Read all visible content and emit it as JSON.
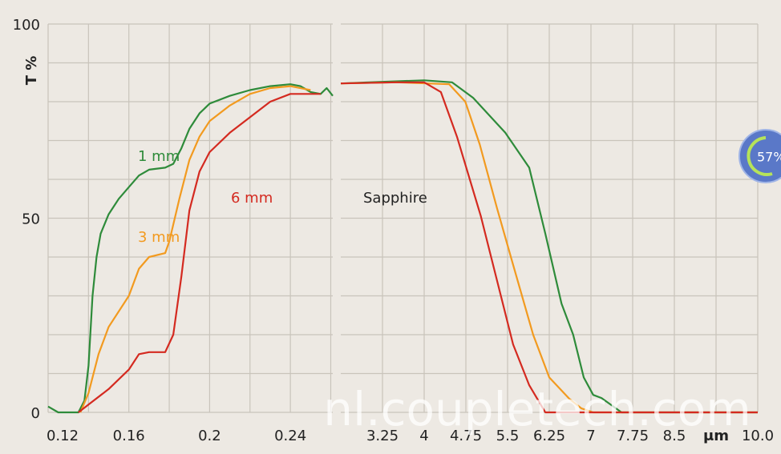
{
  "chart_data": [
    {
      "type": "line",
      "ylabel": "T %",
      "xlim": [
        0.12,
        0.261
      ],
      "xticks": [
        0.12,
        0.16,
        0.2,
        0.24
      ],
      "xgrid": [
        0.14,
        0.18,
        0.22,
        0.26
      ],
      "ylim": [
        0,
        100
      ],
      "yticks": [
        0,
        50,
        100
      ],
      "ygrid": [
        10,
        20,
        30,
        40,
        60,
        70,
        80,
        90
      ],
      "series": [
        {
          "name": "1 mm",
          "color": "#2e8b3a",
          "x": [
            0.12,
            0.125,
            0.135,
            0.138,
            0.14,
            0.142,
            0.144,
            0.146,
            0.15,
            0.155,
            0.16,
            0.165,
            0.17,
            0.178,
            0.182,
            0.186,
            0.19,
            0.195,
            0.2,
            0.21,
            0.22,
            0.23,
            0.24,
            0.245,
            0.25,
            0.255,
            0.258,
            0.261
          ],
          "values": [
            1.5,
            0,
            0,
            3,
            12,
            30,
            40,
            46,
            51,
            55,
            58,
            61,
            62.5,
            63,
            64,
            68,
            73,
            77,
            79.5,
            81.5,
            83,
            84,
            84.5,
            84,
            82.5,
            82,
            83.5,
            81.5
          ]
        },
        {
          "name": "3 mm",
          "color": "#f29a1f",
          "x": [
            0.136,
            0.14,
            0.145,
            0.15,
            0.16,
            0.165,
            0.17,
            0.178,
            0.18,
            0.185,
            0.19,
            0.195,
            0.2,
            0.21,
            0.22,
            0.23,
            0.24,
            0.25
          ],
          "values": [
            0,
            5,
            15,
            22,
            30,
            37,
            40,
            41,
            44,
            55,
            65,
            71,
            75,
            79,
            82,
            83.5,
            84,
            83
          ]
        },
        {
          "name": "6 mm",
          "color": "#d42a20",
          "x": [
            0.135,
            0.14,
            0.15,
            0.16,
            0.165,
            0.17,
            0.178,
            0.182,
            0.186,
            0.19,
            0.195,
            0.2,
            0.21,
            0.22,
            0.23,
            0.24,
            0.25,
            0.255
          ],
          "values": [
            0,
            2,
            6,
            11,
            15,
            15.5,
            15.5,
            20,
            35,
            52,
            62,
            67,
            72,
            76,
            80,
            82,
            82,
            82
          ]
        }
      ]
    },
    {
      "type": "line",
      "annotation": "Sapphire",
      "xlim": [
        2.5,
        10.0
      ],
      "xticks": [
        3.25,
        4.0,
        4.75,
        5.5,
        6.25,
        7.0,
        7.75,
        8.5,
        {
          "value": 9.25,
          "label": "μm"
        },
        {
          "value": 10.0,
          "label": "10.0"
        }
      ],
      "ylim": [
        0,
        100
      ],
      "ygrid": [
        0,
        10,
        20,
        30,
        40,
        50,
        60,
        70,
        80,
        90,
        100
      ],
      "series": [
        {
          "color": "#2e8b3a",
          "x": [
            2.5,
            3.0,
            4.0,
            4.5,
            4.88,
            5.46,
            5.89,
            6.18,
            6.47,
            6.68,
            6.87,
            7.04,
            7.19,
            7.55,
            10.0
          ],
          "values": [
            84.7,
            85,
            85.5,
            85,
            81,
            72,
            63,
            46,
            28,
            20,
            9,
            4.5,
            3.7,
            0,
            0
          ]
        },
        {
          "color": "#f29a1f",
          "x": [
            2.5,
            3.5,
            4.45,
            4.74,
            5.0,
            5.31,
            5.6,
            5.96,
            6.25,
            6.61,
            6.83,
            7.04,
            10.0
          ],
          "values": [
            84.7,
            85,
            84.5,
            80,
            69,
            52.6,
            38,
            20,
            9,
            3.5,
            1,
            0,
            0
          ]
        },
        {
          "color": "#d42a20",
          "x": [
            2.5,
            3.5,
            4.0,
            4.3,
            4.59,
            5.02,
            5.31,
            5.6,
            5.89,
            6.18,
            10.0
          ],
          "values": [
            84.7,
            85,
            85,
            82.5,
            71,
            50.5,
            34,
            17.5,
            7,
            0,
            0
          ]
        }
      ]
    }
  ],
  "watermark": "nl.coupletech.com",
  "badge": "57%"
}
